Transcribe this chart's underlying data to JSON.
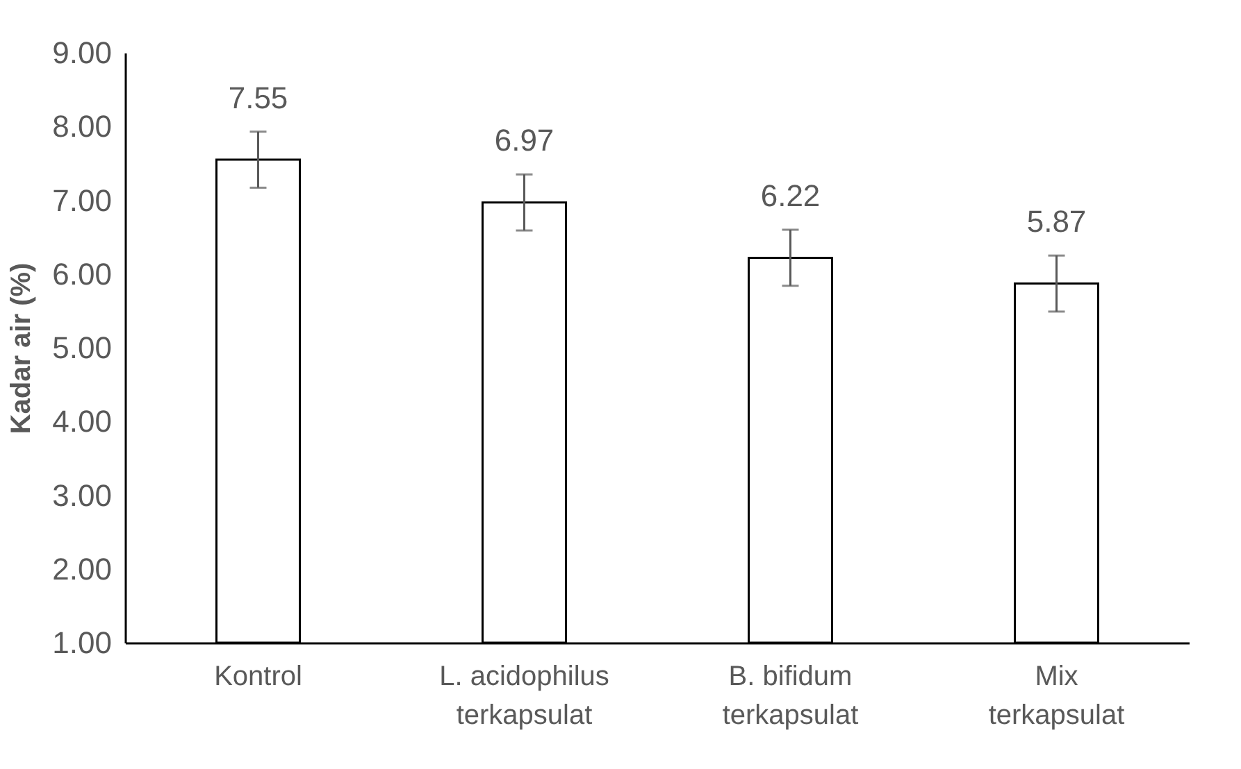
{
  "chart_data": {
    "type": "bar",
    "ylabel": "Kadar air (%)",
    "categories": [
      "Kontrol",
      "L. acidophilus terkapsulat",
      "B. bifidum terkapsulat",
      "Mix terkapsulat"
    ],
    "values": [
      7.55,
      6.97,
      6.22,
      5.87
    ],
    "errors": [
      0.38,
      0.38,
      0.38,
      0.38
    ],
    "color": "#ffffff",
    "ylim": [
      1,
      9
    ],
    "yticks": [
      {
        "value": 1,
        "label": "1.00"
      },
      {
        "value": 2,
        "label": "2.00"
      },
      {
        "value": 3,
        "label": "3.00"
      },
      {
        "value": 4,
        "label": "4.00"
      },
      {
        "value": 5,
        "label": "5.00"
      },
      {
        "value": 6,
        "label": "6.00"
      },
      {
        "value": 7,
        "label": "7.00"
      },
      {
        "value": 8,
        "label": "8.00"
      },
      {
        "value": 9,
        "label": "9.00"
      }
    ],
    "grid": false,
    "data_labels": true
  }
}
